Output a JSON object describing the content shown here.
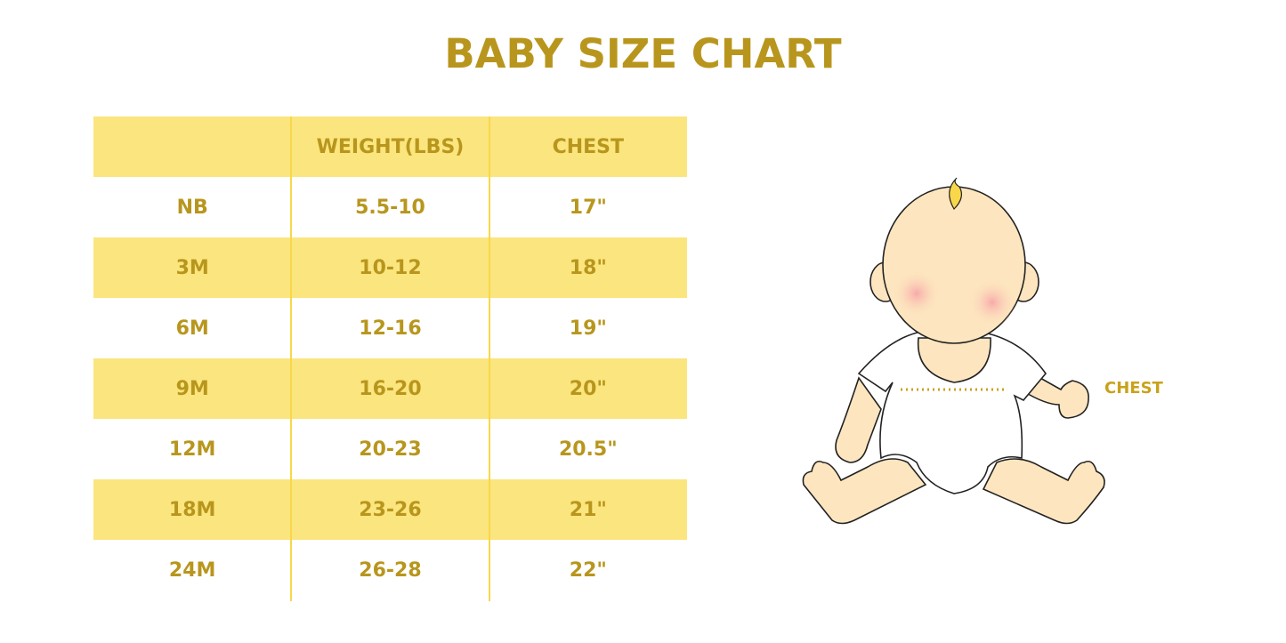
{
  "title": "BABY SIZE CHART",
  "table": {
    "headers": [
      "",
      "WEIGHT(LBS)",
      "CHEST"
    ],
    "rows": [
      [
        "NB",
        "5.5-10",
        "17\""
      ],
      [
        "3M",
        "10-12",
        "18\""
      ],
      [
        "6M",
        "12-16",
        "19\""
      ],
      [
        "9M",
        "16-20",
        "20\""
      ],
      [
        "12M",
        "20-23",
        "20.5\""
      ],
      [
        "18M",
        "23-26",
        "21\""
      ],
      [
        "24M",
        "26-28",
        "22\""
      ]
    ]
  },
  "illustration": {
    "label": "CHEST"
  },
  "colors": {
    "accent": "#b8961d",
    "band": "#fbe57e",
    "skin": "#fde6bf"
  }
}
